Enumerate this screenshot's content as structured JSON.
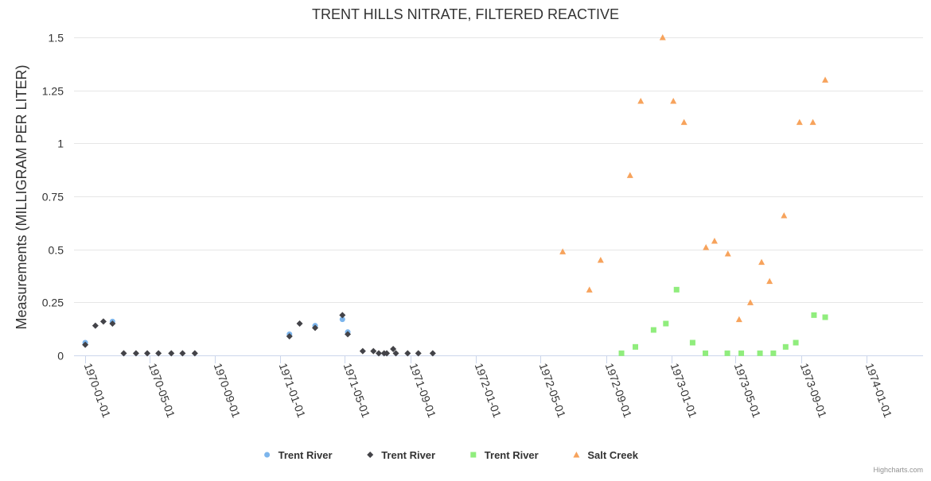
{
  "chart_data": {
    "type": "scatter",
    "title": "TRENT HILLS NITRATE, FILTERED REACTIVE",
    "xlabel": "",
    "ylabel": "Measurements (MILLIGRAM PER LITER)",
    "ylim": [
      0,
      1.5
    ],
    "yticks": [
      "0",
      "0.25",
      "0.5",
      "0.75",
      "1",
      "1.25",
      "1.5"
    ],
    "xlim": [
      "1969-12-11",
      "1974-04-17"
    ],
    "xticks": [
      "1970-01-01",
      "1970-05-01",
      "1970-09-01",
      "1971-01-01",
      "1971-05-01",
      "1971-09-01",
      "1972-01-01",
      "1972-05-01",
      "1972-09-01",
      "1973-01-01",
      "1973-05-01",
      "1973-09-01",
      "1974-01-01"
    ],
    "grid": true,
    "legend_position": "bottom-center",
    "series": [
      {
        "name": "Trent River",
        "marker": "circle",
        "color": "#7cb5ec",
        "points": [
          [
            "1970-01-01",
            0.06
          ],
          [
            "1970-02-21",
            0.16
          ],
          [
            "1971-01-18",
            0.1
          ],
          [
            "1971-03-07",
            0.14
          ],
          [
            "1971-04-27",
            0.17
          ],
          [
            "1971-05-07",
            0.11
          ]
        ]
      },
      {
        "name": "Trent River",
        "marker": "diamond",
        "color": "#434348",
        "points": [
          [
            "1970-01-01",
            0.05
          ],
          [
            "1970-01-20",
            0.14
          ],
          [
            "1970-02-04",
            0.16
          ],
          [
            "1970-02-21",
            0.15
          ],
          [
            "1970-03-14",
            0.01
          ],
          [
            "1970-04-06",
            0.01
          ],
          [
            "1970-04-27",
            0.01
          ],
          [
            "1970-05-18",
            0.01
          ],
          [
            "1970-06-11",
            0.01
          ],
          [
            "1970-07-02",
            0.01
          ],
          [
            "1970-07-25",
            0.01
          ],
          [
            "1971-01-18",
            0.09
          ],
          [
            "1971-02-06",
            0.15
          ],
          [
            "1971-03-07",
            0.13
          ],
          [
            "1971-04-27",
            0.19
          ],
          [
            "1971-05-07",
            0.1
          ],
          [
            "1971-06-04",
            0.02
          ],
          [
            "1971-06-24",
            0.02
          ],
          [
            "1971-07-04",
            0.01
          ],
          [
            "1971-07-14",
            0.01
          ],
          [
            "1971-07-19",
            0.01
          ],
          [
            "1971-07-31",
            0.03
          ],
          [
            "1971-08-05",
            0.01
          ],
          [
            "1971-08-27",
            0.01
          ],
          [
            "1971-09-16",
            0.01
          ],
          [
            "1971-10-13",
            0.01
          ]
        ]
      },
      {
        "name": "Trent River",
        "marker": "square",
        "color": "#90ed7d",
        "points": [
          [
            "1972-09-30",
            0.01
          ],
          [
            "1972-10-26",
            0.04
          ],
          [
            "1972-11-29",
            0.12
          ],
          [
            "1972-12-22",
            0.15
          ],
          [
            "1973-01-11",
            0.31
          ],
          [
            "1973-02-10",
            0.06
          ],
          [
            "1973-03-06",
            0.01
          ],
          [
            "1973-04-16",
            0.01
          ],
          [
            "1973-05-12",
            0.01
          ],
          [
            "1973-06-16",
            0.01
          ],
          [
            "1973-07-11",
            0.01
          ],
          [
            "1973-08-03",
            0.04
          ],
          [
            "1973-08-22",
            0.06
          ],
          [
            "1973-09-25",
            0.19
          ],
          [
            "1973-10-16",
            0.18
          ]
        ]
      },
      {
        "name": "Salt Creek",
        "marker": "triangle",
        "color": "#f7a35c",
        "points": [
          [
            "1972-06-12",
            0.49
          ],
          [
            "1972-08-01",
            0.31
          ],
          [
            "1972-08-22",
            0.45
          ],
          [
            "1972-10-16",
            0.85
          ],
          [
            "1972-11-05",
            1.2
          ],
          [
            "1972-12-16",
            1.5
          ],
          [
            "1973-01-05",
            1.2
          ],
          [
            "1973-01-25",
            1.1
          ],
          [
            "1973-03-07",
            0.51
          ],
          [
            "1973-03-23",
            0.54
          ],
          [
            "1973-04-17",
            0.48
          ],
          [
            "1973-05-08",
            0.17
          ],
          [
            "1973-05-29",
            0.25
          ],
          [
            "1973-06-19",
            0.44
          ],
          [
            "1973-07-04",
            0.35
          ],
          [
            "1973-07-31",
            0.66
          ],
          [
            "1973-08-29",
            1.1
          ],
          [
            "1973-09-23",
            1.1
          ],
          [
            "1973-10-16",
            1.3
          ]
        ]
      }
    ]
  },
  "credits": "Highcharts.com"
}
